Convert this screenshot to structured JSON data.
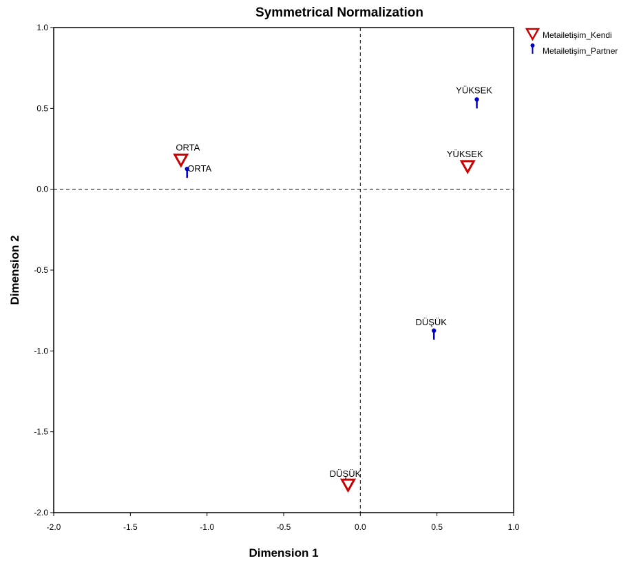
{
  "chart_data": {
    "type": "scatter",
    "title": "Symmetrical Normalization",
    "xlabel": "Dimension 1",
    "ylabel": "Dimension 2",
    "xlim": [
      -2.0,
      1.0
    ],
    "ylim": [
      -2.0,
      1.0
    ],
    "xticks": [
      "-2.0",
      "-1.5",
      "-1.0",
      "-0.5",
      "0.0",
      "0.5",
      "1.0"
    ],
    "yticks": [
      "1.0",
      "0.5",
      "0.0",
      "-0.5",
      "-1.0",
      "-1.5",
      "-2.0"
    ],
    "xtick_values": [
      -2.0,
      -1.5,
      -1.0,
      -0.5,
      0.0,
      0.5,
      1.0
    ],
    "ytick_values": [
      1.0,
      0.5,
      0.0,
      -0.5,
      -1.0,
      -1.5,
      -2.0
    ],
    "reference_lines": {
      "x": 0.0,
      "y": 0.0,
      "style": "dashed"
    },
    "grid": false,
    "legend_position": "top-right",
    "series": [
      {
        "name": "Metailetişim_Kendi",
        "marker": "triangle-down",
        "color": "#cc0000",
        "points": [
          {
            "label": "ORTA",
            "x": -1.17,
            "y": 0.18
          },
          {
            "label": "YÜKSEK",
            "x": 0.7,
            "y": 0.14
          },
          {
            "label": "DÜŞÜK",
            "x": -0.08,
            "y": -1.83
          }
        ]
      },
      {
        "name": "Metailetişim_Partner",
        "marker": "pin",
        "color": "#0000cc",
        "points": [
          {
            "label": "ORTA",
            "x": -1.13,
            "y": 0.1
          },
          {
            "label": "YÜKSEK",
            "x": 0.76,
            "y": 0.53
          },
          {
            "label": "DÜŞÜK",
            "x": 0.48,
            "y": -0.9
          }
        ]
      }
    ]
  }
}
